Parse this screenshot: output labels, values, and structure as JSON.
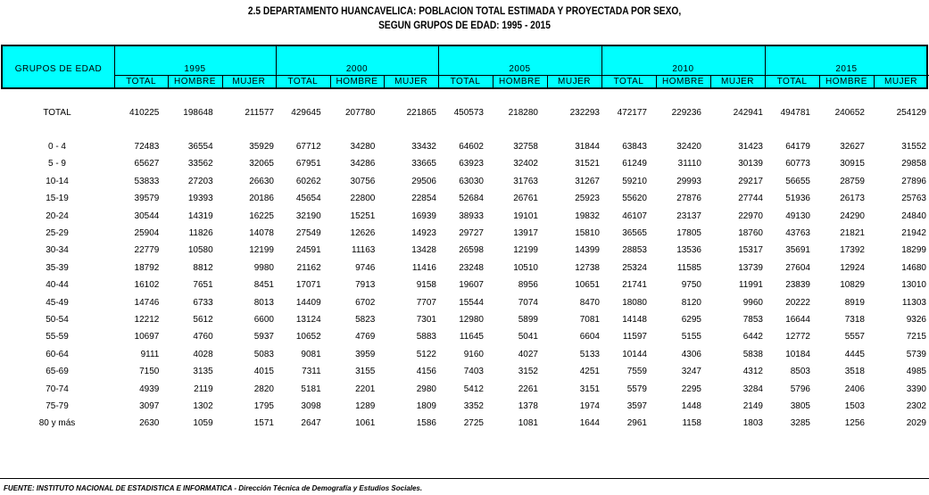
{
  "title_line1": "2.5  DEPARTAMENTO HUANCAVELICA: POBLACION TOTAL ESTIMADA Y PROYECTADA POR SEXO,",
  "title_line2": "SEGUN GRUPOS DE EDAD: 1995 - 2015",
  "header": {
    "group_label": "GRUPOS DE EDAD",
    "years": [
      "1995",
      "2000",
      "2005",
      "2010",
      "2015"
    ],
    "sub": [
      "TOTAL",
      "HOMBRE",
      "MUJER"
    ]
  },
  "rows": [
    {
      "label": "TOTAL",
      "values": [
        410225,
        198648,
        211577,
        429645,
        207780,
        221865,
        450573,
        218280,
        232293,
        472177,
        229236,
        242941,
        494781,
        240652,
        254129
      ]
    },
    {
      "label": "0 - 4",
      "values": [
        72483,
        36554,
        35929,
        67712,
        34280,
        33432,
        64602,
        32758,
        31844,
        63843,
        32420,
        31423,
        64179,
        32627,
        31552
      ]
    },
    {
      "label": "5 - 9",
      "values": [
        65627,
        33562,
        32065,
        67951,
        34286,
        33665,
        63923,
        32402,
        31521,
        61249,
        31110,
        30139,
        60773,
        30915,
        29858
      ]
    },
    {
      "label": "10-14",
      "values": [
        53833,
        27203,
        26630,
        60262,
        30756,
        29506,
        63030,
        31763,
        31267,
        59210,
        29993,
        29217,
        56655,
        28759,
        27896
      ]
    },
    {
      "label": "15-19",
      "values": [
        39579,
        19393,
        20186,
        45654,
        22800,
        22854,
        52684,
        26761,
        25923,
        55620,
        27876,
        27744,
        51936,
        26173,
        25763
      ]
    },
    {
      "label": "20-24",
      "values": [
        30544,
        14319,
        16225,
        32190,
        15251,
        16939,
        38933,
        19101,
        19832,
        46107,
        23137,
        22970,
        49130,
        24290,
        24840
      ]
    },
    {
      "label": "25-29",
      "values": [
        25904,
        11826,
        14078,
        27549,
        12626,
        14923,
        29727,
        13917,
        15810,
        36565,
        17805,
        18760,
        43763,
        21821,
        21942
      ]
    },
    {
      "label": "30-34",
      "values": [
        22779,
        10580,
        12199,
        24591,
        11163,
        13428,
        26598,
        12199,
        14399,
        28853,
        13536,
        15317,
        35691,
        17392,
        18299
      ]
    },
    {
      "label": "35-39",
      "values": [
        18792,
        8812,
        9980,
        21162,
        9746,
        11416,
        23248,
        10510,
        12738,
        25324,
        11585,
        13739,
        27604,
        12924,
        14680
      ]
    },
    {
      "label": "40-44",
      "values": [
        16102,
        7651,
        8451,
        17071,
        7913,
        9158,
        19607,
        8956,
        10651,
        21741,
        9750,
        11991,
        23839,
        10829,
        13010
      ]
    },
    {
      "label": "45-49",
      "values": [
        14746,
        6733,
        8013,
        14409,
        6702,
        7707,
        15544,
        7074,
        8470,
        18080,
        8120,
        9960,
        20222,
        8919,
        11303
      ]
    },
    {
      "label": "50-54",
      "values": [
        12212,
        5612,
        6600,
        13124,
        5823,
        7301,
        12980,
        5899,
        7081,
        14148,
        6295,
        7853,
        16644,
        7318,
        9326
      ]
    },
    {
      "label": "55-59",
      "values": [
        10697,
        4760,
        5937,
        10652,
        4769,
        5883,
        11645,
        5041,
        6604,
        11597,
        5155,
        6442,
        12772,
        5557,
        7215
      ]
    },
    {
      "label": "60-64",
      "values": [
        9111,
        4028,
        5083,
        9081,
        3959,
        5122,
        9160,
        4027,
        5133,
        10144,
        4306,
        5838,
        10184,
        4445,
        5739
      ]
    },
    {
      "label": "65-69",
      "values": [
        7150,
        3135,
        4015,
        7311,
        3155,
        4156,
        7403,
        3152,
        4251,
        7559,
        3247,
        4312,
        8503,
        3518,
        4985
      ]
    },
    {
      "label": "70-74",
      "values": [
        4939,
        2119,
        2820,
        5181,
        2201,
        2980,
        5412,
        2261,
        3151,
        5579,
        2295,
        3284,
        5796,
        2406,
        3390
      ]
    },
    {
      "label": "75-79",
      "values": [
        3097,
        1302,
        1795,
        3098,
        1289,
        1809,
        3352,
        1378,
        1974,
        3597,
        1448,
        2149,
        3805,
        1503,
        2302
      ]
    },
    {
      "label": "80 y más",
      "values": [
        2630,
        1059,
        1571,
        2647,
        1061,
        1586,
        2725,
        1081,
        1644,
        2961,
        1158,
        1803,
        3285,
        1256,
        2029
      ]
    }
  ],
  "footer": "FUENTE: INSTITUTO NACIONAL DE ESTADISTICA E INFORMATICA - Dirección Técnica de Demografía y Estudios Sociales.",
  "colors": {
    "header_bg": "#00ffff"
  }
}
